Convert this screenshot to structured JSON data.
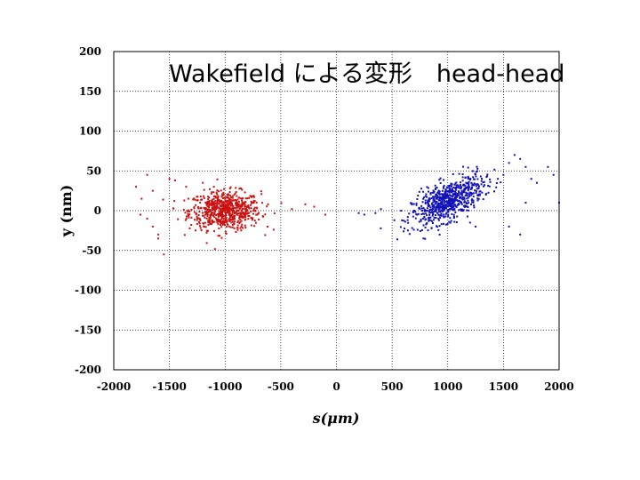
{
  "chart_data": {
    "type": "scatter",
    "title": "Wakefield による変形　head-head",
    "xlabel": "s(μm)",
    "ylabel": "y (nm)",
    "xlim": [
      -2000,
      2000
    ],
    "ylim": [
      -200,
      200
    ],
    "xticks": [
      -2000,
      -1500,
      -1000,
      -500,
      0,
      500,
      1000,
      1500,
      2000
    ],
    "yticks": [
      -200,
      -150,
      -100,
      -50,
      0,
      50,
      100,
      150,
      200
    ],
    "grid": true,
    "series": [
      {
        "color": "#cc1111",
        "clusters": [
          {
            "x_center": -1000,
            "x_spread": 320,
            "y_center": 0,
            "y_spread": 12,
            "count": 700
          }
        ],
        "points": [
          [
            -1750,
            15
          ],
          [
            -1800,
            30
          ],
          [
            -1650,
            25
          ],
          [
            -1700,
            -10
          ],
          [
            -1550,
            -55
          ],
          [
            -1600,
            -30
          ],
          [
            -1500,
            40
          ],
          [
            -1450,
            38
          ],
          [
            -1350,
            30
          ],
          [
            -1200,
            35
          ],
          [
            -1650,
            -20
          ],
          [
            -1700,
            45
          ],
          [
            -280,
            8
          ],
          [
            -200,
            5
          ],
          [
            -100,
            -5
          ],
          [
            -400,
            2
          ],
          [
            -1760,
            -5
          ],
          [
            -1600,
            -35
          ]
        ]
      },
      {
        "color": "#1111bb",
        "clusters": [
          {
            "x_center": 1000,
            "x_spread": 320,
            "slope_y_per_um": 0.06,
            "y_spread": 12,
            "count": 700
          }
        ],
        "points": [
          [
            1650,
            65
          ],
          [
            1700,
            55
          ],
          [
            1750,
            40
          ],
          [
            1800,
            35
          ],
          [
            1600,
            70
          ],
          [
            1550,
            60
          ],
          [
            1900,
            55
          ],
          [
            1950,
            45
          ],
          [
            2000,
            10
          ],
          [
            1700,
            10
          ],
          [
            1650,
            -30
          ],
          [
            1550,
            -20
          ],
          [
            1200,
            -15
          ],
          [
            1250,
            -20
          ],
          [
            400,
            2
          ],
          [
            350,
            -3
          ],
          [
            250,
            -5
          ],
          [
            200,
            -3
          ],
          [
            1500,
            45
          ],
          [
            1450,
            40
          ]
        ]
      }
    ]
  }
}
